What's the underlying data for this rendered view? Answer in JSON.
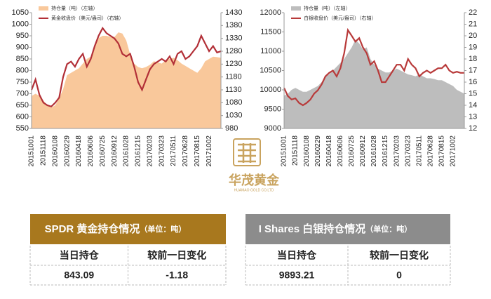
{
  "chart_data": [
    {
      "type": "area",
      "categories": [
        "20151001",
        null,
        null,
        "20151118",
        null,
        null,
        "20160108",
        null,
        null,
        "20160229",
        null,
        null,
        "20160418",
        null,
        null,
        "20160606",
        null,
        null,
        "20160725",
        null,
        null,
        "20160912",
        null,
        null,
        "20161028",
        null,
        null,
        "20161215",
        null,
        null,
        "20170203",
        null,
        null,
        "20170323",
        null,
        null,
        "20170511",
        null,
        null,
        "20170628",
        null,
        null,
        "20170815",
        null,
        null,
        "20171002",
        null,
        null,
        null
      ],
      "series": [
        {
          "name": "持仓量（吨）（左轴）",
          "type": "area",
          "color": "#f9c89b",
          "values": [
            690,
            700,
            690,
            670,
            650,
            640,
            650,
            680,
            720,
            780,
            790,
            800,
            810,
            830,
            850,
            860,
            900,
            940,
            950,
            950,
            945,
            945,
            965,
            960,
            930,
            870,
            830,
            815,
            810,
            815,
            825,
            840,
            835,
            830,
            845,
            850,
            855,
            845,
            830,
            820,
            810,
            800,
            790,
            810,
            840,
            850,
            860,
            858,
            855
          ]
        },
        {
          "name": "黄金收盘价（美元/盎司）（右轴）",
          "type": "line",
          "axis": "y2",
          "color": "#b22f37",
          "values": [
            1130,
            1170,
            1110,
            1080,
            1070,
            1065,
            1080,
            1100,
            1180,
            1230,
            1240,
            1220,
            1250,
            1270,
            1220,
            1250,
            1300,
            1340,
            1370,
            1350,
            1340,
            1330,
            1310,
            1270,
            1260,
            1270,
            1220,
            1160,
            1130,
            1170,
            1210,
            1230,
            1240,
            1250,
            1240,
            1260,
            1230,
            1270,
            1280,
            1250,
            1260,
            1280,
            1300,
            1340,
            1310,
            1280,
            1300,
            1275,
            1280
          ]
        }
      ],
      "ylim": [
        550,
        1050
      ],
      "yticks": [
        550,
        600,
        650,
        700,
        750,
        800,
        850,
        900,
        950,
        1000,
        1050
      ],
      "y2lim": [
        980,
        1430
      ],
      "y2ticks": [
        980,
        1030,
        1080,
        1130,
        1180,
        1230,
        1280,
        1330,
        1380,
        1430
      ]
    },
    {
      "type": "area",
      "categories": [
        "20151001",
        null,
        null,
        "20151118",
        null,
        null,
        "20160108",
        null,
        null,
        "20160229",
        null,
        null,
        "20160418",
        null,
        null,
        "20160606",
        null,
        null,
        "20160725",
        null,
        null,
        "20160912",
        null,
        null,
        "20161028",
        null,
        null,
        "20161215",
        null,
        null,
        "20170203",
        null,
        null,
        "20170323",
        null,
        null,
        "20170511",
        null,
        null,
        "20170628",
        null,
        null,
        "20170815",
        null,
        null,
        "20171002",
        null,
        null,
        null
      ],
      "series": [
        {
          "name": "持仓量（吨）（左轴）",
          "type": "area",
          "color": "#bdbdbd",
          "values": [
            9850,
            9900,
            10000,
            10050,
            10000,
            9950,
            9950,
            10000,
            10050,
            10100,
            10200,
            10350,
            10400,
            10500,
            10600,
            10700,
            10800,
            10950,
            11100,
            11300,
            11200,
            11050,
            11100,
            10800,
            10650,
            10550,
            10500,
            10450,
            10450,
            10500,
            10550,
            10500,
            10450,
            10400,
            10380,
            10350,
            10400,
            10350,
            10300,
            10300,
            10280,
            10250,
            10250,
            10200,
            10150,
            10100,
            10000,
            9950,
            9900
          ]
        },
        {
          "name": "白银收盘价（美元/盎司）（右轴）",
          "type": "line",
          "axis": "y2",
          "color": "#b83a3a",
          "values": [
            15.5,
            14.8,
            14.5,
            14.6,
            14.2,
            14.0,
            14.2,
            14.5,
            15.0,
            15.3,
            15.8,
            16.5,
            16.8,
            17.0,
            16.5,
            17.2,
            18.5,
            20.5,
            20.0,
            19.5,
            19.8,
            19.0,
            18.5,
            17.5,
            17.8,
            17.0,
            16.0,
            16.0,
            16.5,
            17.0,
            17.5,
            17.5,
            17.0,
            18.0,
            17.5,
            17.2,
            16.5,
            16.8,
            17.0,
            16.8,
            17.0,
            17.2,
            17.2,
            17.5,
            17.0,
            16.8,
            16.9,
            16.8,
            16.8
          ]
        }
      ],
      "ylim": [
        9000,
        12000
      ],
      "yticks": [
        9000,
        9500,
        10000,
        10500,
        11000,
        11500,
        12000
      ],
      "y2lim": [
        12,
        22
      ],
      "y2ticks": [
        12,
        13,
        14,
        15,
        16,
        17,
        18,
        19,
        20,
        21,
        22
      ]
    }
  ],
  "logo": {
    "name": "华茂黄金",
    "subtitle": "HUAMAO GOLD CO.LTD"
  },
  "tables": [
    {
      "title": "SPDR 黄金持仓情况",
      "unit": "（单位：吨）",
      "headers": [
        "当日持仓",
        "较前一日变化"
      ],
      "row": [
        "843.09",
        "-1.18"
      ]
    },
    {
      "title": "I Shares 白银持仓情况",
      "unit": "（单位：吨）",
      "headers": [
        "当日持仓",
        "较前一日变化"
      ],
      "row": [
        "9893.21",
        "0"
      ]
    }
  ]
}
